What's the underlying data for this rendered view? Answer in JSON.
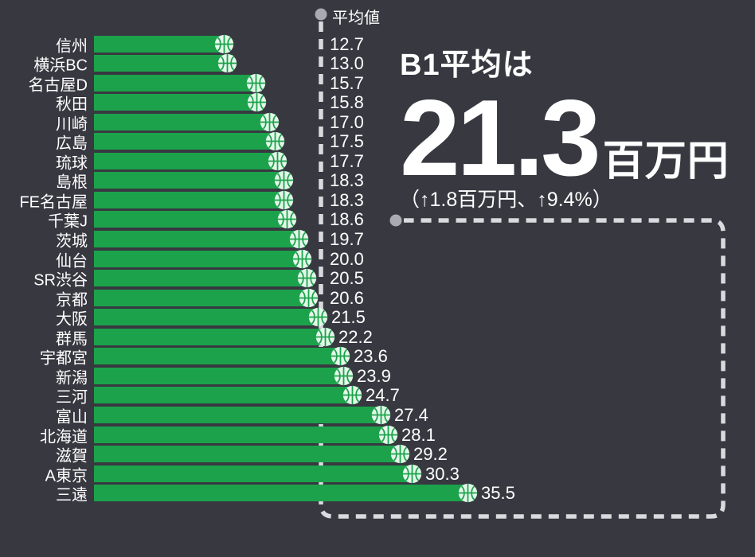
{
  "average_marker": {
    "label": "平均値"
  },
  "callout": {
    "title": "B1平均は",
    "value": "21.3",
    "unit": "百万円",
    "change": "（↑1.8百万円、↑9.4%）"
  },
  "colors": {
    "background": "#383841",
    "bar": "#1ca24b",
    "ball_fill": "#e4f8ea",
    "dash": "#d9dade",
    "dot": "#a9aab2",
    "text": "#ffffff"
  },
  "chart_data": {
    "type": "bar",
    "orientation": "horizontal",
    "title": "B1平均は 21.3百万円",
    "unit": "百万円",
    "average_value": 21.3,
    "average_label": "平均値",
    "xlim": [
      0,
      40
    ],
    "grid": false,
    "legend": "none",
    "categories": [
      "信州",
      "横浜BC",
      "名古屋D",
      "秋田",
      "川崎",
      "広島",
      "琉球",
      "島根",
      "FE名古屋",
      "千葉J",
      "茨城",
      "仙台",
      "SR渋谷",
      "京都",
      "大阪",
      "群馬",
      "宇都宮",
      "新潟",
      "三河",
      "富山",
      "北海道",
      "滋賀",
      "A東京",
      "三遠"
    ],
    "values": [
      12.7,
      13.0,
      15.7,
      15.8,
      17.0,
      17.5,
      17.7,
      18.3,
      18.3,
      18.6,
      19.7,
      20.0,
      20.5,
      20.6,
      21.5,
      22.2,
      23.6,
      23.9,
      24.7,
      27.4,
      28.1,
      29.2,
      30.3,
      35.5
    ]
  }
}
